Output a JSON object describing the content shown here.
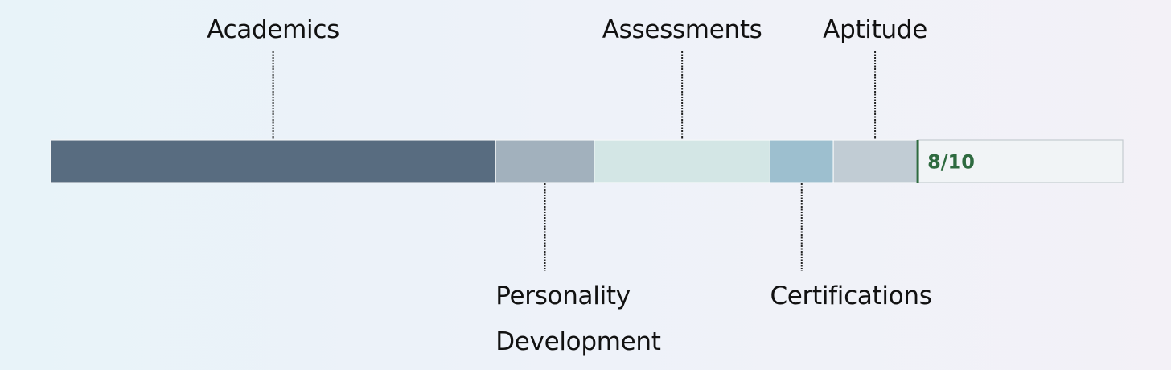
{
  "chart_data": {
    "type": "stacked-bar",
    "score_label": "8/10",
    "max": 10,
    "score": 8,
    "segments": [
      {
        "name": "Academics",
        "label_lines": [
          "Academics"
        ],
        "value": 4.15,
        "color": "#586c80",
        "label_side": "top"
      },
      {
        "name": "Personality Development",
        "label_lines": [
          "Personality",
          "Development"
        ],
        "value": 0.92,
        "color": "#a2b1bd",
        "label_side": "bottom"
      },
      {
        "name": "Assessments",
        "label_lines": [
          "Assessments"
        ],
        "value": 1.64,
        "color": "#d3e6e5",
        "label_side": "top"
      },
      {
        "name": "Certifications",
        "label_lines": [
          "Certifications"
        ],
        "value": 0.59,
        "color": "#9dbfcf",
        "label_side": "bottom"
      },
      {
        "name": "Aptitude",
        "label_lines": [
          "Aptitude"
        ],
        "value": 0.78,
        "color": "#c1ccd4",
        "label_side": "top"
      }
    ],
    "remainder_color": "#f1f4f6",
    "score_marker_color": "#2e6a3f"
  }
}
